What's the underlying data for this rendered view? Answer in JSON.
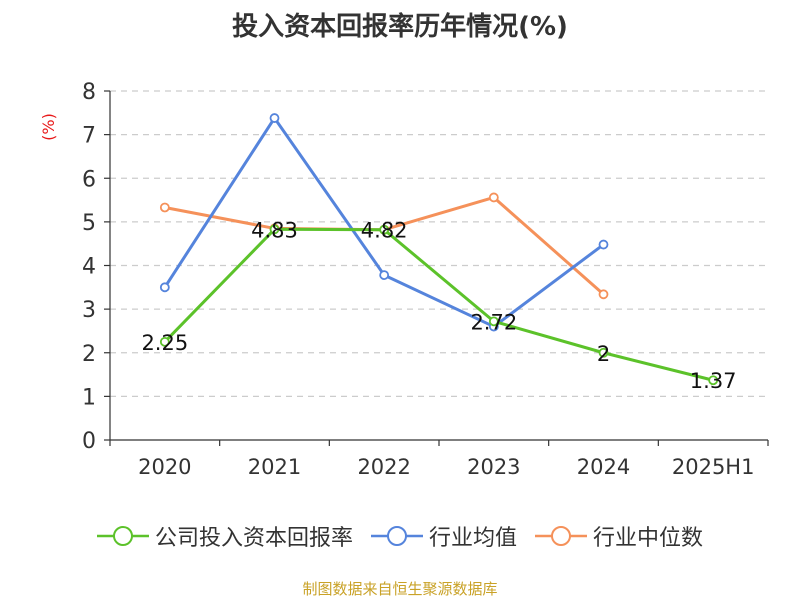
{
  "chart_data": {
    "type": "line",
    "title": "投入资本回报率历年情况(%)",
    "ylabel": "(%)",
    "categories": [
      "2020",
      "2021",
      "2022",
      "2023",
      "2024",
      "2025H1"
    ],
    "ylim": [
      0,
      8
    ],
    "yticks": [
      0,
      1,
      2,
      3,
      4,
      5,
      6,
      7,
      8
    ],
    "grid": true,
    "legend_position": "bottom",
    "series": [
      {
        "name": "公司投入资本回报率",
        "color": "#5cc22a",
        "values": [
          2.25,
          4.83,
          4.82,
          2.72,
          2,
          1.37
        ],
        "labels": [
          "2.25",
          "4.83",
          "4.82",
          "2.72",
          "2",
          "1.37"
        ]
      },
      {
        "name": "行业均值",
        "color": "#5584dc",
        "values": [
          3.5,
          7.38,
          3.78,
          2.6,
          4.48,
          null
        ]
      },
      {
        "name": "行业中位数",
        "color": "#f5915a",
        "values": [
          5.33,
          4.85,
          4.82,
          5.56,
          3.34,
          null
        ]
      }
    ]
  },
  "source": "制图数据来自恒生聚源数据库"
}
